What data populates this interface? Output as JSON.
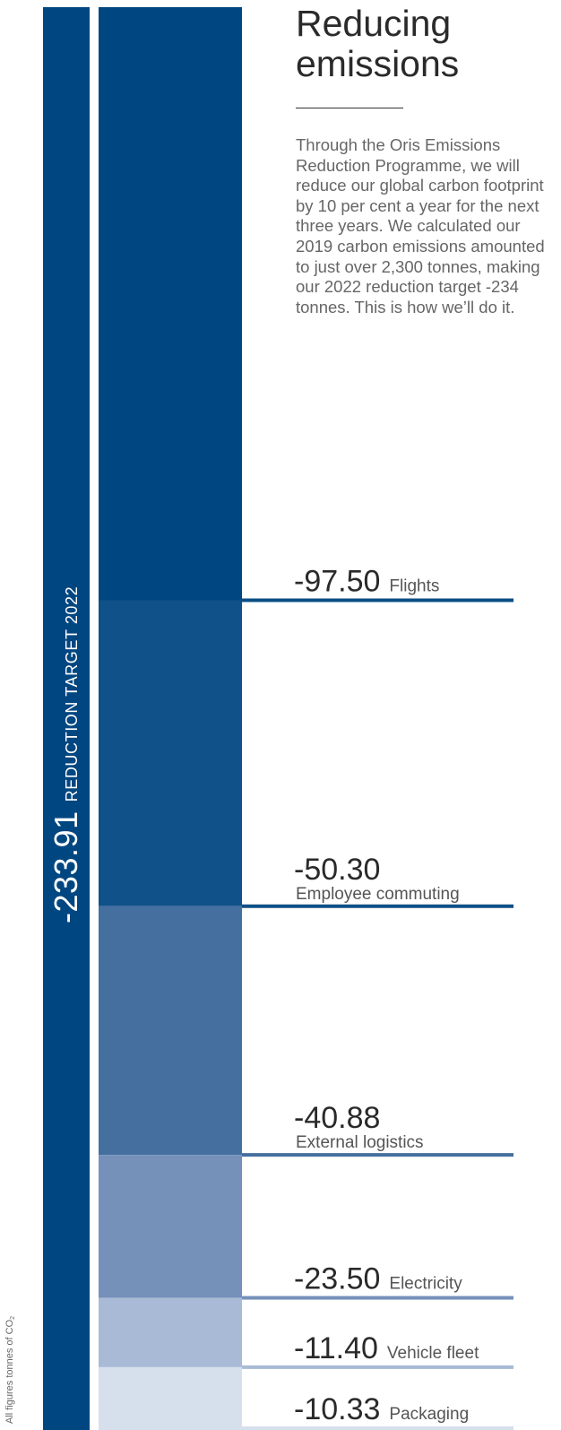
{
  "title": "Reducing emissions",
  "intro": "Through the Oris Emissions Reduction Programme, we will reduce our global carbon footprint by 10 per cent a year for the next three years. We calculated our 2019 carbon emissions amounted to just over 2,300 tonnes, making our 2022 reduction target -234 tonnes. This is how we’ll do it.",
  "units_note": "All figures tonnes of CO",
  "units_note_sub": "2",
  "chart_data": {
    "type": "bar",
    "orientation": "vertical-stacked",
    "total": {
      "value": "-233.91",
      "label": "REDUCTION TARGET 2022",
      "numeric": -233.91,
      "color": "#004680"
    },
    "segments": [
      {
        "value": "-97.50",
        "label": "Flights",
        "numeric": -97.5,
        "color": "#004680",
        "line_color": "#0a4f86",
        "label_layout": "inline"
      },
      {
        "value": "-50.30",
        "label": "Employee commuting",
        "numeric": -50.3,
        "color": "#0f5188",
        "line_color": "#0f5188",
        "label_layout": "stacked"
      },
      {
        "value": "-40.88",
        "label": "External logistics",
        "numeric": -40.88,
        "color": "#456f9e",
        "line_color": "#456f9e",
        "label_layout": "stacked"
      },
      {
        "value": "-23.50",
        "label": "Electricity",
        "numeric": -23.5,
        "color": "#7591ba",
        "line_color": "#7591ba",
        "label_layout": "inline"
      },
      {
        "value": "-11.40",
        "label": "Vehicle fleet",
        "numeric": -11.4,
        "color": "#a9bad6",
        "line_color": "#a9bad6",
        "label_layout": "inline"
      },
      {
        "value": "-10.33",
        "label": "Packaging",
        "numeric": -10.33,
        "color": "#d6dfec",
        "line_color": "#d6dfec",
        "label_layout": "inline"
      }
    ]
  }
}
